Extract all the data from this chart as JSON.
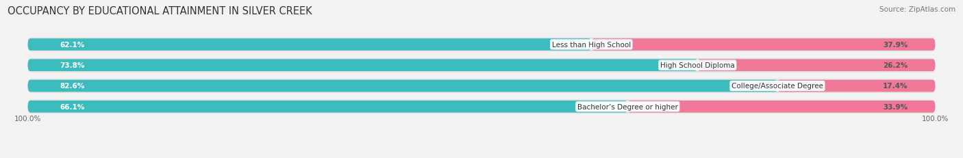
{
  "title": "OCCUPANCY BY EDUCATIONAL ATTAINMENT IN SILVER CREEK",
  "source": "Source: ZipAtlas.com",
  "categories": [
    "Less than High School",
    "High School Diploma",
    "College/Associate Degree",
    "Bachelor’s Degree or higher"
  ],
  "owner_values": [
    62.1,
    73.8,
    82.6,
    66.1
  ],
  "renter_values": [
    37.9,
    26.2,
    17.4,
    33.9
  ],
  "owner_color": "#3dbcbe",
  "renter_color": "#f07898",
  "bg_color": "#f2f2f2",
  "track_color": "#e0e0e0",
  "title_fontsize": 10.5,
  "source_fontsize": 7.5,
  "value_fontsize": 7.5,
  "cat_fontsize": 7.5,
  "legend_fontsize": 8,
  "tick_fontsize": 7.5,
  "x_left_label": "100.0%",
  "x_right_label": "100.0%"
}
